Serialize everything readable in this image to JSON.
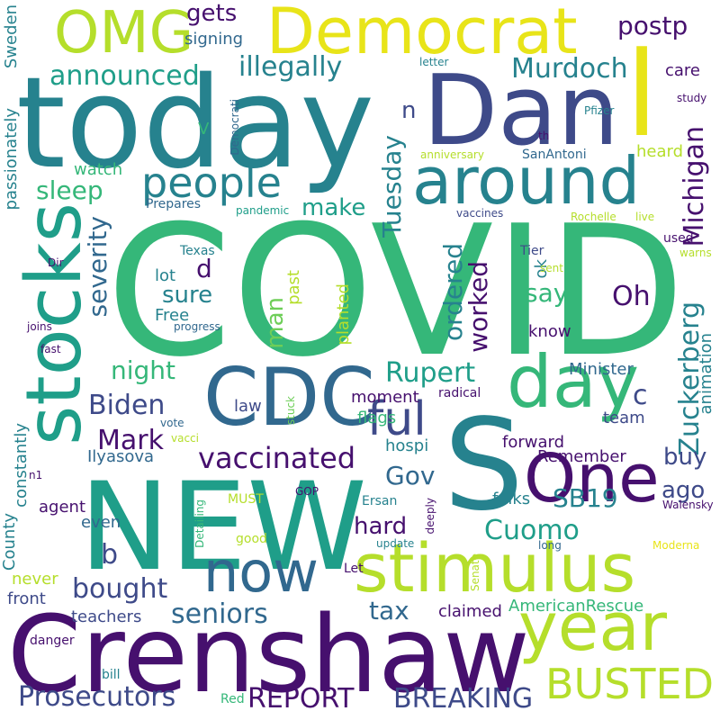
{
  "palette": {
    "dark_purple": "#46106e",
    "indigo": "#3e4a89",
    "blue": "#31688e",
    "teal": "#26828e",
    "green_teal": "#1f9e89",
    "green": "#35b779",
    "light_green": "#6ece58",
    "yellow_green": "#b5de2b",
    "yellow": "#e8e419"
  },
  "words": {
    "covid": "COVID",
    "crenshaw": "Crenshaw",
    "new": "NEW",
    "today": "today",
    "dan": "Dan",
    "stocks": "stocks",
    "democrat": "Democrat",
    "omg": "OMG",
    "around": "around",
    "l": "l",
    "cdc": "CDC",
    "s": "S",
    "stimulus": "stimulus",
    "year": "year",
    "day": "day",
    "one": "One",
    "now": "now",
    "busted": "BUSTED",
    "breaking": "BREAKING",
    "prosecutors": "Prosecutors",
    "report": "REPORT",
    "people": "people",
    "ful": "ful",
    "vaccinated": "vaccinated",
    "michigan": "Michigan",
    "zuckerberg": "Zuckerberg",
    "murdoch": "Murdoch",
    "rupert": "Rupert",
    "tuesday": "Tuesday",
    "cuomo": "Cuomo",
    "sb19": "SB19",
    "seniors": "seniors",
    "bought": "bought",
    "biden": "Biden",
    "mark": "Mark",
    "announced": "announced",
    "illegally": "illegally",
    "severity": "severity",
    "sleep": "sleep",
    "night": "night",
    "gets": "gets",
    "postp": "postp",
    "tax": "tax",
    "oh": "Oh",
    "gov": "Gov",
    "hard": "hard",
    "ordered": "ordered",
    "worked": "worked",
    "man": "man",
    "buy": "buy",
    "ago": "ago",
    "say": "say",
    "make": "make",
    "sure": "sure",
    "free": "Free",
    "d": "d",
    "b": "b",
    "c": "c",
    "n": "n",
    "past": "past",
    "ok": "ok",
    "lot": "lot",
    "law": "law",
    "moment": "moment",
    "flags": "flags",
    "minister": "Minister",
    "team": "team",
    "forward": "forward",
    "remember": "Remember",
    "folks": "folks",
    "ilyasova": "Ilyasova",
    "hospi": "hospi",
    "claimed": "claimed",
    "americanrescue": "AmericanRescue",
    "teachers": "teachers",
    "front": "front",
    "never": "never",
    "agent": "agent",
    "even": "even",
    "county": "County",
    "constantly": "constantly",
    "passionately": "passionately",
    "sweden": "Sweden",
    "watch": "watch",
    "heard": "heard",
    "care": "care",
    "study": "study",
    "pfizer": "Pfizer",
    "letter": "letter",
    "signing": "signing",
    "democrati": "Democrati",
    "v": "V",
    "prepares": "Prepares",
    "pandemic": "pandemic",
    "vaccines": "vaccines",
    "rochelle": "Rochelle",
    "live": "live",
    "used": "used",
    "warns": "warns",
    "sent": "sent",
    "tier": "Tier",
    "texas": "Texas",
    "dir": "Dir",
    "joins": "joins",
    "fast": "fast",
    "progress": "progress",
    "planted": "planted",
    "know": "know",
    "animation": "animation",
    "radical": "radical",
    "stuck": "stuck",
    "vote": "vote",
    "vacci": "vacci",
    "n1": "n1",
    "must": "MUST",
    "gop": "GOP",
    "ersan": "Ersan",
    "detailing": "Detailing",
    "deeply": "deeply",
    "good": "good",
    "update": "update",
    "long": "long",
    "walensky": "Walensky",
    "moderna": "Moderna",
    "senate": "Senate",
    "let": "Let",
    "danger": "danger",
    "bill": "bill",
    "red": "Red",
    "anniversary": "anniversary",
    "sanantoni": "SanAntoni",
    "th": "th"
  }
}
